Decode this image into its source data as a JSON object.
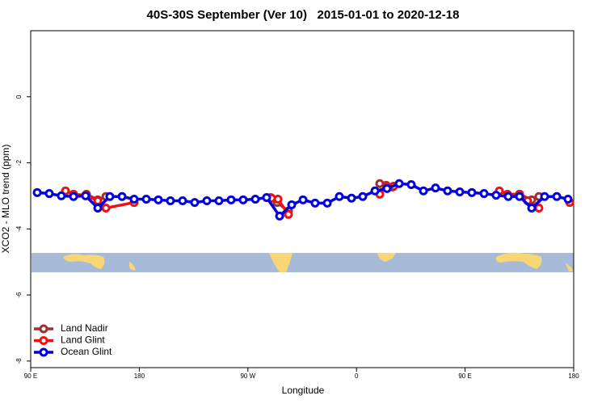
{
  "chart_data": {
    "type": "line",
    "title": "40S-30S September (Ver 10)   2015-01-01 to 2020-12-18",
    "xlabel": "Longitude",
    "ylabel": "XCO2 - MLO trend (ppm)",
    "xlim": [
      90,
      540
    ],
    "xticks": [
      {
        "value": 90,
        "label": "90 E"
      },
      {
        "value": 180,
        "label": "180"
      },
      {
        "value": 270,
        "label": "90 W"
      },
      {
        "value": 360,
        "label": "0"
      },
      {
        "value": 450,
        "label": "90 E"
      },
      {
        "value": 540,
        "label": "180"
      }
    ],
    "ylim": [
      -8.2,
      2.0
    ],
    "yticks": [
      0,
      -2,
      -4,
      -6,
      -8
    ],
    "legend": "bottom-left",
    "series": [
      {
        "name": "Land Nadir",
        "color": "#993333",
        "x": [
          136.2,
          145.6,
          152.3,
          null,
          288.9,
          294.2,
          303.6,
          null,
          379.3,
          384.6,
          390.0,
          null,
          495.1,
          505.2,
          511.2
        ],
        "values": [
          -2.95,
          -3.12,
          -3.02,
          null,
          -3.05,
          -3.2,
          -3.46,
          null,
          -2.63,
          -2.68,
          -2.73,
          null,
          -2.95,
          -3.12,
          -3.02
        ]
      },
      {
        "name": "Land Glint",
        "color": "#ee1111",
        "x": [
          118.8,
          125.5,
          135.5,
          145.6,
          152.3,
          175.7,
          null,
          289.6,
          294.9,
          303.6,
          null,
          379.3,
          384.6,
          390.7,
          null,
          478.4,
          485.1,
          495.1,
          501.8,
          511.2,
          null,
          536.7
        ],
        "values": [
          -2.85,
          -2.95,
          -2.98,
          -3.15,
          -3.37,
          -3.2,
          null,
          -3.07,
          -3.1,
          -3.56,
          null,
          -2.95,
          -2.71,
          -2.71,
          null,
          -2.85,
          -2.95,
          -2.95,
          -3.15,
          -3.37,
          null,
          -3.2
        ]
      },
      {
        "name": "Ocean Glint",
        "color": "#0000dd",
        "x": [
          95.4,
          105.4,
          115.4,
          125.5,
          135.5,
          145.6,
          155.6,
          165.7,
          175.7,
          185.8,
          195.8,
          205.8,
          215.9,
          225.9,
          236.0,
          246.0,
          256.1,
          266.1,
          276.2,
          285.5,
          296.3,
          306.3,
          315.7,
          325.7,
          335.8,
          345.8,
          355.9,
          365.2,
          375.3,
          385.3,
          395.4,
          405.4,
          415.5,
          425.5,
          435.5,
          445.6,
          455.6,
          465.7,
          475.7,
          485.8,
          495.1,
          505.2,
          515.9,
          526.0,
          535.3
        ],
        "values": [
          -2.9,
          -2.93,
          -3.0,
          -3.02,
          -3.0,
          -3.37,
          -3.02,
          -3.02,
          -3.1,
          -3.1,
          -3.12,
          -3.15,
          -3.15,
          -3.2,
          -3.15,
          -3.15,
          -3.12,
          -3.12,
          -3.1,
          -3.05,
          -3.61,
          -3.27,
          -3.12,
          -3.22,
          -3.22,
          -3.02,
          -3.07,
          -3.02,
          -2.85,
          -2.78,
          -2.63,
          -2.66,
          -2.85,
          -2.76,
          -2.85,
          -2.88,
          -2.9,
          -2.93,
          -2.98,
          -3.02,
          -3.02,
          -3.37,
          -3.02,
          -3.02,
          -3.1
        ]
      }
    ]
  }
}
